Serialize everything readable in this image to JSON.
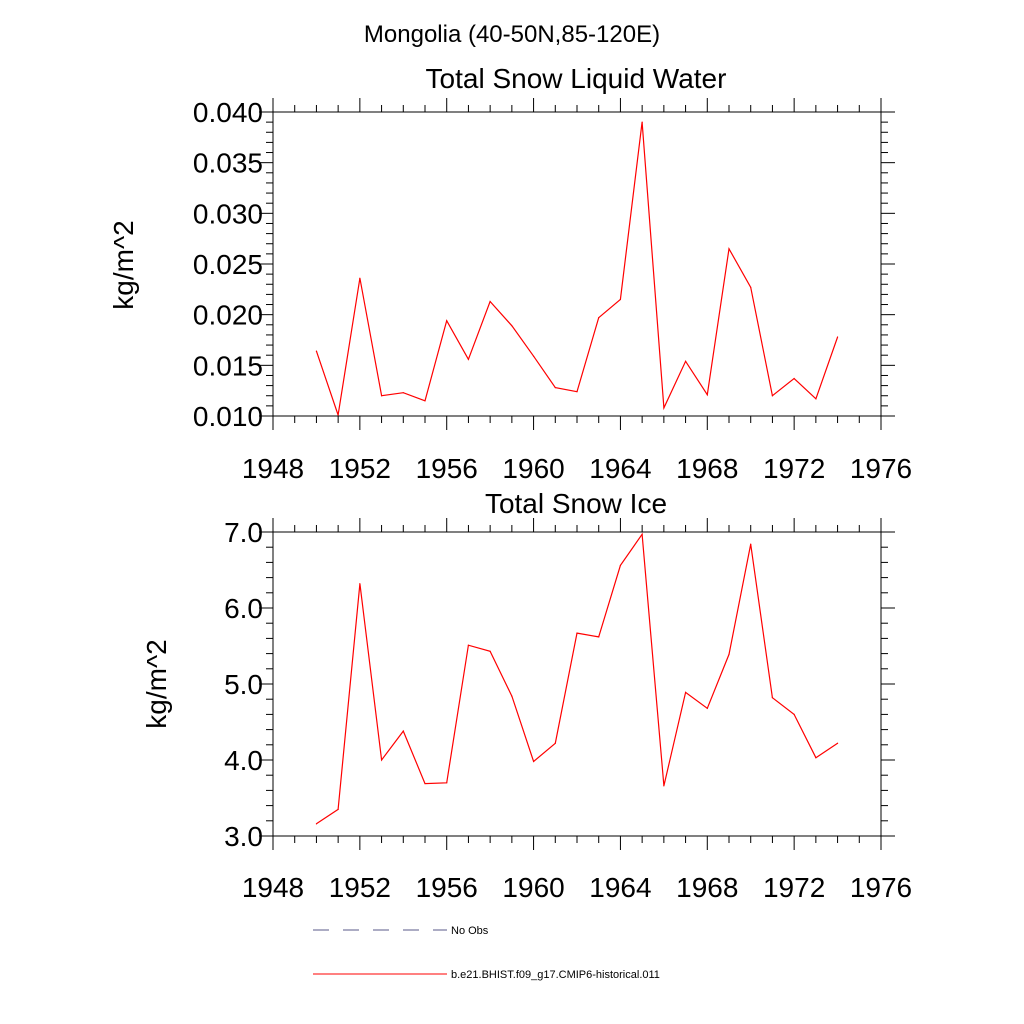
{
  "figure_title": "Mongolia (40-50N,85-120E)",
  "chart_data": [
    {
      "type": "line",
      "title": "Total Snow Liquid Water",
      "xlabel": "",
      "ylabel": "kg/m^2",
      "xlim": [
        1948,
        1976
      ],
      "ylim": [
        0.01,
        0.04
      ],
      "xticks": [
        "1948",
        "1952",
        "1956",
        "1960",
        "1964",
        "1968",
        "1972",
        "1976"
      ],
      "yticks": [
        "0.010",
        "0.015",
        "0.020",
        "0.025",
        "0.030",
        "0.035",
        "0.040"
      ],
      "x": [
        1950,
        1951,
        1952,
        1953,
        1954,
        1955,
        1956,
        1957,
        1958,
        1959,
        1960,
        1961,
        1962,
        1963,
        1964,
        1965,
        1966,
        1967,
        1968,
        1969,
        1970,
        1971,
        1972,
        1973,
        1974
      ],
      "series": [
        {
          "name": "b.e21.BHIST.f09_g17.CMIP6-historical.011",
          "color": "#ff0000",
          "values": [
            0.0164,
            0.0101,
            0.0236,
            0.012,
            0.0123,
            0.0115,
            0.0194,
            0.0156,
            0.0213,
            0.0189,
            0.0159,
            0.0128,
            0.0124,
            0.0197,
            0.0215,
            0.039,
            0.0108,
            0.0154,
            0.0121,
            0.0265,
            0.0227,
            0.012,
            0.0137,
            0.0117,
            0.0178
          ]
        }
      ],
      "grid": false
    },
    {
      "type": "line",
      "title": "Total Snow Ice",
      "xlabel": "",
      "ylabel": "kg/m^2",
      "xlim": [
        1948,
        1976
      ],
      "ylim": [
        3.0,
        7.0
      ],
      "xticks": [
        "1948",
        "1952",
        "1956",
        "1960",
        "1964",
        "1968",
        "1972",
        "1976"
      ],
      "yticks": [
        "3.0",
        "4.0",
        "5.0",
        "6.0",
        "7.0"
      ],
      "x": [
        1950,
        1951,
        1952,
        1953,
        1954,
        1955,
        1956,
        1957,
        1958,
        1959,
        1960,
        1961,
        1962,
        1963,
        1964,
        1965,
        1966,
        1967,
        1968,
        1969,
        1970,
        1971,
        1972,
        1973,
        1974
      ],
      "series": [
        {
          "name": "b.e21.BHIST.f09_g17.CMIP6-historical.011",
          "color": "#ff0000",
          "values": [
            3.16,
            3.35,
            6.32,
            4.0,
            4.38,
            3.69,
            3.7,
            5.51,
            5.43,
            4.84,
            3.98,
            4.22,
            5.67,
            5.62,
            6.56,
            6.97,
            3.66,
            4.89,
            4.68,
            5.39,
            6.84,
            4.82,
            4.6,
            4.03,
            4.22
          ]
        }
      ],
      "grid": false
    }
  ],
  "legend": {
    "placement": "bottom",
    "items": [
      {
        "label": "No Obs",
        "style": "dashed",
        "color": "#5a5a8a"
      },
      {
        "label": "b.e21.BHIST.f09_g17.CMIP6-historical.011",
        "style": "solid",
        "color": "#ff0000"
      }
    ]
  }
}
